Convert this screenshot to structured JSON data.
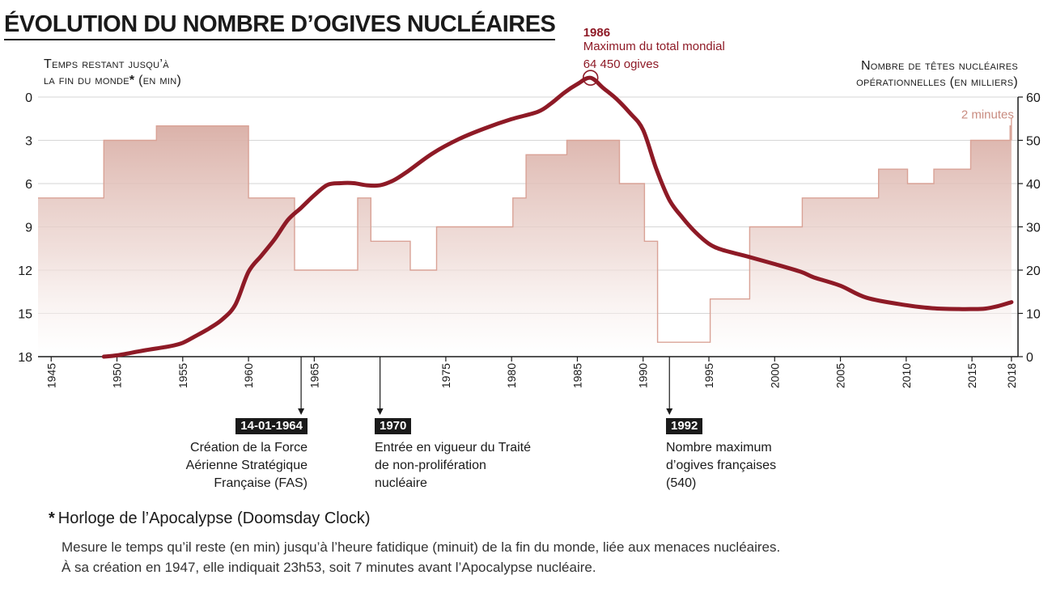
{
  "title": "Évolution du nombre d’ogives nucléaires",
  "left_axis_title": [
    "Temps restant jusqu’à",
    "la fin du monde",
    "(en min)"
  ],
  "left_axis_asterisk": "*",
  "right_axis_title": [
    "Nombre de têtes nucléaires",
    "opérationnelles (en milliers)"
  ],
  "peak_annotation": {
    "year": "1986",
    "label": "Maximum du total mondial",
    "value": "64 450 ogives"
  },
  "clock_annotation": "2 minutes",
  "events": [
    {
      "tag": "14-01-1964",
      "lines": [
        "Création de la Force",
        "Aérienne Stratégique",
        "Française (FAS)"
      ]
    },
    {
      "tag": "1970",
      "lines": [
        "Entrée en vigueur du Traité",
        "de non-prolifération",
        "nucléaire"
      ]
    },
    {
      "tag": "1992",
      "lines": [
        "Nombre maximum",
        "d’ogives françaises",
        "(540)"
      ]
    }
  ],
  "footnote": {
    "star": "*",
    "title": "Horloge de l’Apocalypse (Doomsday Clock)",
    "lines": [
      "Mesure le temps qu’il reste (en min) jusqu’à l’heure fatidique (minuit) de la fin du monde, liée aux menaces nucléaires.",
      "À sa création en 1947, elle indiquait 23h53, soit 7 minutes avant l’Apocalypse nucléaire."
    ]
  },
  "colors": {
    "accent": "#8e1a26",
    "area_line": "#d9a296",
    "area_fill_top": "#d9aea5",
    "text": "#1a1a1a"
  },
  "chart_data": {
    "type": "line",
    "x_tick_labels": [
      "1945",
      "1950",
      "1955",
      "1960",
      "1965",
      "1975",
      "1980",
      "1985",
      "1990",
      "1995",
      "2000",
      "2005",
      "2010",
      "2015",
      "2018"
    ],
    "xlim": [
      1944,
      2018.5
    ],
    "left_axis": {
      "label": "Temps restant jusqu’à la fin du monde (en min)",
      "ticks": [
        0,
        3,
        6,
        9,
        12,
        15,
        18
      ],
      "ylim": [
        0,
        18
      ],
      "inverted": true
    },
    "right_axis": {
      "label": "Nombre de têtes nucléaires opérationnelles (en milliers)",
      "ticks": [
        0,
        10,
        20,
        30,
        40,
        50,
        60
      ],
      "ylim": [
        0,
        60
      ]
    },
    "series": [
      {
        "name": "Horloge de l’Apocalypse (minutes avant minuit)",
        "axis": "left",
        "style": "step-area",
        "steps": [
          {
            "from": 1944,
            "value": 7
          },
          {
            "from": 1949,
            "value": 3
          },
          {
            "from": 1953,
            "value": 2
          },
          {
            "from": 1960,
            "value": 7
          },
          {
            "from": 1963.5,
            "value": 12
          },
          {
            "from": 1968.3,
            "value": 7
          },
          {
            "from": 1969.3,
            "value": 10
          },
          {
            "from": 1972.3,
            "value": 12
          },
          {
            "from": 1974.3,
            "value": 9
          },
          {
            "from": 1980.1,
            "value": 7
          },
          {
            "from": 1981.1,
            "value": 4
          },
          {
            "from": 1984.2,
            "value": 3
          },
          {
            "from": 1988.2,
            "value": 6
          },
          {
            "from": 1990.1,
            "value": 10
          },
          {
            "from": 1991.1,
            "value": 17
          },
          {
            "from": 1995.1,
            "value": 14
          },
          {
            "from": 1998.1,
            "value": 9
          },
          {
            "from": 2002.1,
            "value": 7
          },
          {
            "from": 2007.9,
            "value": 5
          },
          {
            "from": 2010.1,
            "value": 6
          },
          {
            "from": 2012.1,
            "value": 5
          },
          {
            "from": 2014.9,
            "value": 3
          },
          {
            "from": 2017.9,
            "value": 2
          }
        ],
        "end": 2018
      },
      {
        "name": "Têtes nucléaires opérationnelles (milliers)",
        "axis": "right",
        "style": "line",
        "x": [
          1949,
          1950,
          1952,
          1954,
          1955,
          1956,
          1957,
          1958,
          1959,
          1960,
          1961,
          1962,
          1963,
          1964,
          1965,
          1966,
          1967,
          1968,
          1969,
          1970,
          1971,
          1972,
          1974,
          1976,
          1978,
          1980,
          1982,
          1983,
          1984,
          1985,
          1986,
          1987,
          1988,
          1989,
          1990,
          1991,
          1992,
          1993,
          1994,
          1995,
          1996,
          1998,
          2000,
          2002,
          2003,
          2005,
          2007,
          2010,
          2012,
          2014,
          2015,
          2016,
          2017,
          2018
        ],
        "y": [
          0.0,
          0.3,
          1.4,
          2.4,
          3.2,
          4.8,
          6.5,
          8.6,
          12.0,
          19.6,
          23.4,
          27.2,
          31.6,
          34.4,
          37.3,
          39.7,
          40.1,
          40.1,
          39.6,
          39.6,
          40.7,
          42.6,
          47.0,
          50.3,
          52.8,
          54.9,
          56.6,
          58.5,
          61.0,
          63.0,
          64.45,
          62.0,
          59.5,
          56.3,
          52.4,
          43.4,
          36.2,
          32.1,
          28.7,
          26.1,
          24.7,
          23.1,
          21.4,
          19.6,
          18.3,
          16.4,
          13.6,
          11.9,
          11.2,
          11.0,
          11.0,
          11.1,
          11.7,
          12.6
        ]
      }
    ],
    "annotations": [
      {
        "x": 1986,
        "axis": "right",
        "y": 64.45,
        "text": "1986 · Maximum du total mondial · 64 450 ogives"
      },
      {
        "x": 2018,
        "axis": "left",
        "y": 2,
        "text": "2 minutes"
      }
    ],
    "event_markers": [
      1964,
      1970,
      1992
    ]
  }
}
